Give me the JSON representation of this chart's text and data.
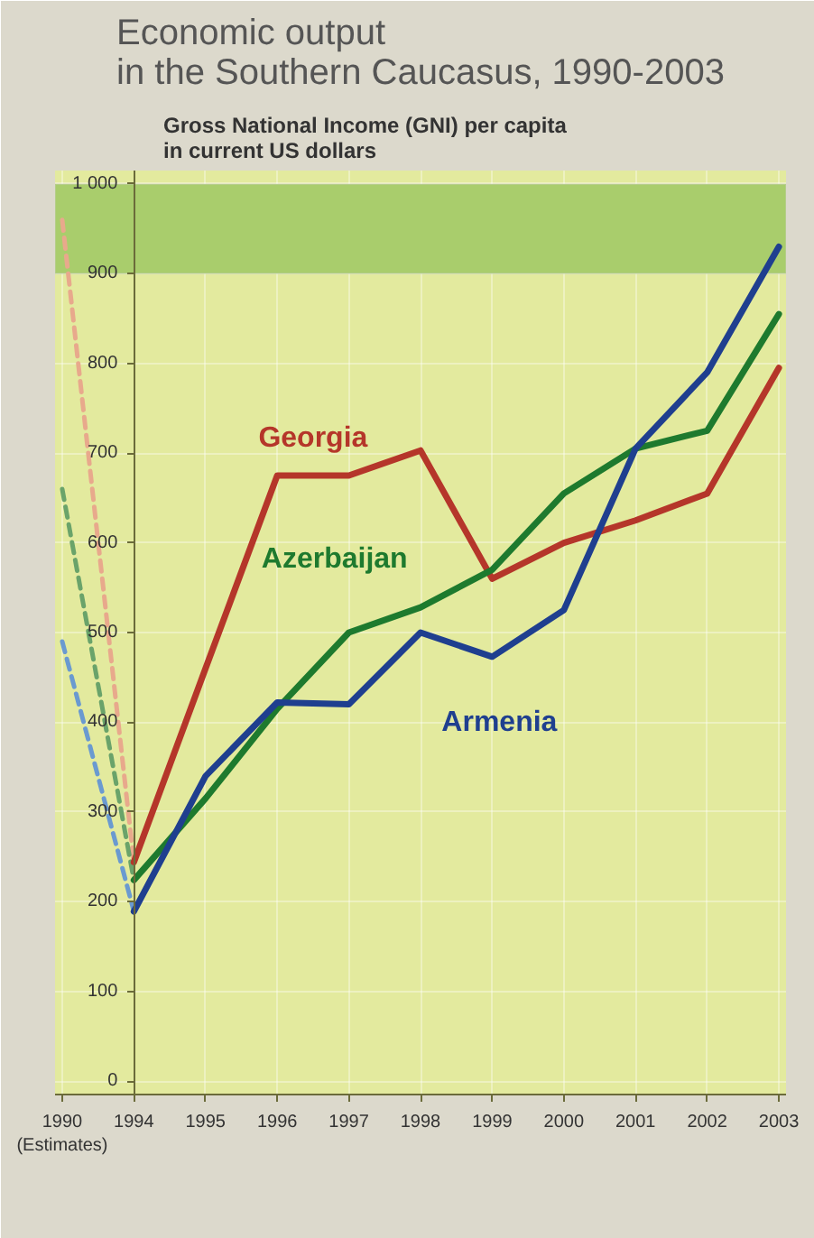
{
  "chart_data": {
    "type": "line",
    "title": "Economic output\nin the Southern Caucasus, 1990-2003",
    "ylabel": "Gross National Income (GNI) per capita\nin current US dollars",
    "categories": [
      "1990\n(Estimates)",
      "1994",
      "1995",
      "1996",
      "1997",
      "1998",
      "1999",
      "2000",
      "2001",
      "2002",
      "2003"
    ],
    "series": [
      {
        "color": "#e8a98c",
        "line_style": "dashed",
        "values": [
          960,
          244,
          null,
          null,
          null,
          null,
          null,
          null,
          null,
          null,
          null
        ]
      },
      {
        "color": "#6aa36a",
        "line_style": "dashed",
        "values": [
          660,
          224,
          null,
          null,
          null,
          null,
          null,
          null,
          null,
          null,
          null
        ]
      },
      {
        "color": "#6a9ad0",
        "line_style": "dashed",
        "values": [
          490,
          189,
          null,
          null,
          null,
          null,
          null,
          null,
          null,
          null,
          null
        ]
      },
      {
        "name": "Georgia",
        "color": "#b5362a",
        "values": [
          null,
          244,
          460,
          675,
          675,
          703,
          560,
          600,
          625,
          655,
          795
        ]
      },
      {
        "name": "Azerbaijan",
        "color": "#1e7a2e",
        "values": [
          null,
          224,
          315,
          415,
          500,
          528,
          570,
          655,
          705,
          725,
          855
        ]
      },
      {
        "name": "Armenia",
        "color": "#1f3f8f",
        "values": [
          null,
          189,
          340,
          422,
          420,
          500,
          473,
          525,
          705,
          790,
          930
        ]
      }
    ],
    "ylim": [
      -15,
      1015
    ],
    "yticks": [
      0,
      100,
      200,
      300,
      400,
      500,
      600,
      700,
      800,
      900,
      {
        "value": 1000,
        "label": "1 000"
      }
    ],
    "bands": [
      {
        "axis": "y",
        "from": 900,
        "to": 1000,
        "color": "#a9cd6c"
      }
    ],
    "grid": true,
    "marker": "none"
  }
}
